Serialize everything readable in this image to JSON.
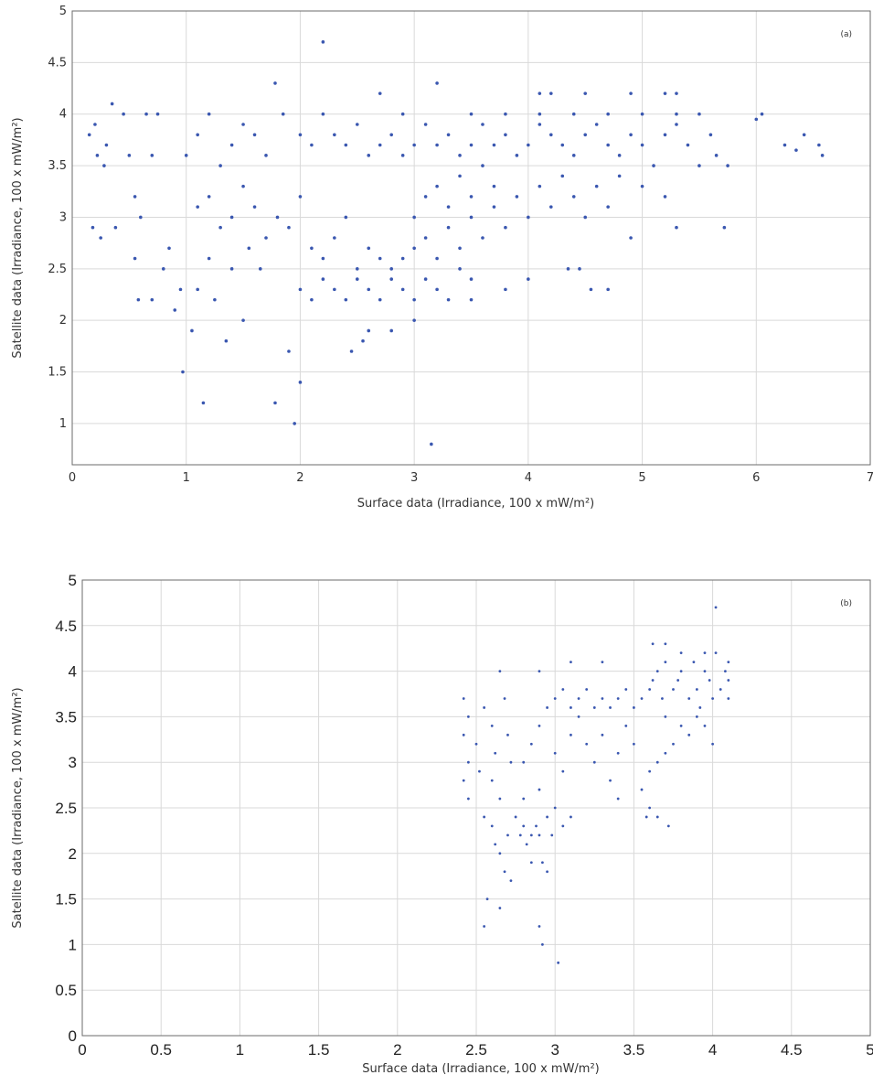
{
  "chart_data": [
    {
      "type": "scatter",
      "panel_label": "(a)",
      "xlabel": "Surface data (Irradiance, 100 x mW/m²)",
      "ylabel": "Satellite data (Irradiance, 100 x mW/m²)",
      "xlim": [
        0,
        7
      ],
      "ylim": [
        0.6,
        5
      ],
      "xticks": [
        0,
        1,
        2,
        3,
        4,
        5,
        6,
        7
      ],
      "yticks": [
        1,
        1.5,
        2,
        2.5,
        3,
        3.5,
        4,
        4.5,
        5
      ],
      "grid": true,
      "marker_color": "#3a57b0",
      "points": [
        [
          0.15,
          3.8
        ],
        [
          0.2,
          3.9
        ],
        [
          0.22,
          3.6
        ],
        [
          0.28,
          3.5
        ],
        [
          0.3,
          3.7
        ],
        [
          0.35,
          4.1
        ],
        [
          0.45,
          4.0
        ],
        [
          0.5,
          3.6
        ],
        [
          0.55,
          3.2
        ],
        [
          0.6,
          3.0
        ],
        [
          0.65,
          4.0
        ],
        [
          0.7,
          3.6
        ],
        [
          0.75,
          4.0
        ],
        [
          0.18,
          2.9
        ],
        [
          0.25,
          2.8
        ],
        [
          0.38,
          2.9
        ],
        [
          0.55,
          2.6
        ],
        [
          0.58,
          2.2
        ],
        [
          0.7,
          2.2
        ],
        [
          0.8,
          2.5
        ],
        [
          0.85,
          2.7
        ],
        [
          0.9,
          2.1
        ],
        [
          0.95,
          2.3
        ],
        [
          0.97,
          1.5
        ],
        [
          1.05,
          1.9
        ],
        [
          1.1,
          2.3
        ],
        [
          1.15,
          1.2
        ],
        [
          1.2,
          2.6
        ],
        [
          1.25,
          2.2
        ],
        [
          1.35,
          1.8
        ],
        [
          1.4,
          2.5
        ],
        [
          1.5,
          2.0
        ],
        [
          1.55,
          2.7
        ],
        [
          1.65,
          2.5
        ],
        [
          1.78,
          1.2
        ],
        [
          1.9,
          1.7
        ],
        [
          1.95,
          1.0
        ],
        [
          2.0,
          1.4
        ],
        [
          2.2,
          4.7
        ],
        [
          1.78,
          4.3
        ],
        [
          3.15,
          0.8
        ],
        [
          3.2,
          4.3
        ],
        [
          2.7,
          4.2
        ],
        [
          4.1,
          4.2
        ],
        [
          4.2,
          4.2
        ],
        [
          4.5,
          4.2
        ],
        [
          4.9,
          4.2
        ],
        [
          5.2,
          4.2
        ],
        [
          5.3,
          4.2
        ],
        [
          6.05,
          4.0
        ],
        [
          6.0,
          3.95
        ],
        [
          6.25,
          3.7
        ],
        [
          6.35,
          3.65
        ],
        [
          6.42,
          3.8
        ],
        [
          6.55,
          3.7
        ],
        [
          6.58,
          3.6
        ],
        [
          5.75,
          3.5
        ],
        [
          5.72,
          2.9
        ],
        [
          5.3,
          2.9
        ],
        [
          4.9,
          2.8
        ],
        [
          4.7,
          2.3
        ],
        [
          4.55,
          2.3
        ],
        [
          4.45,
          2.5
        ],
        [
          4.35,
          2.5
        ],
        [
          2.45,
          1.7
        ],
        [
          2.55,
          1.8
        ],
        [
          2.6,
          1.9
        ],
        [
          2.8,
          1.9
        ],
        [
          3.0,
          2.0
        ],
        [
          3.5,
          2.2
        ],
        [
          3.8,
          2.3
        ],
        [
          4.0,
          2.4
        ],
        [
          1.0,
          3.6
        ],
        [
          1.1,
          3.8
        ],
        [
          1.2,
          4.0
        ],
        [
          1.3,
          3.5
        ],
        [
          1.4,
          3.7
        ],
        [
          1.5,
          3.9
        ],
        [
          1.6,
          3.8
        ],
        [
          1.7,
          3.6
        ],
        [
          1.85,
          4.0
        ],
        [
          2.0,
          3.8
        ],
        [
          2.1,
          3.7
        ],
        [
          2.2,
          4.0
        ],
        [
          2.3,
          3.8
        ],
        [
          2.4,
          3.7
        ],
        [
          2.5,
          3.9
        ],
        [
          2.6,
          3.6
        ],
        [
          1.1,
          3.1
        ],
        [
          1.2,
          3.2
        ],
        [
          1.3,
          2.9
        ],
        [
          1.4,
          3.0
        ],
        [
          1.5,
          3.3
        ],
        [
          1.6,
          3.1
        ],
        [
          1.7,
          2.8
        ],
        [
          1.8,
          3.0
        ],
        [
          1.9,
          2.9
        ],
        [
          2.0,
          3.2
        ],
        [
          2.1,
          2.7
        ],
        [
          2.2,
          2.6
        ],
        [
          2.3,
          2.8
        ],
        [
          2.4,
          3.0
        ],
        [
          2.5,
          2.5
        ],
        [
          2.6,
          2.7
        ],
        [
          2.0,
          2.3
        ],
        [
          2.1,
          2.2
        ],
        [
          2.2,
          2.4
        ],
        [
          2.3,
          2.3
        ],
        [
          2.4,
          2.2
        ],
        [
          2.5,
          2.4
        ],
        [
          2.6,
          2.3
        ],
        [
          2.7,
          2.2
        ],
        [
          2.8,
          2.4
        ],
        [
          2.9,
          2.3
        ],
        [
          3.0,
          2.2
        ],
        [
          3.1,
          2.4
        ],
        [
          3.2,
          2.3
        ],
        [
          3.3,
          2.2
        ],
        [
          3.4,
          2.5
        ],
        [
          3.5,
          2.4
        ],
        [
          2.7,
          2.6
        ],
        [
          2.8,
          2.5
        ],
        [
          2.9,
          2.6
        ],
        [
          3.0,
          2.7
        ],
        [
          3.1,
          2.8
        ],
        [
          3.2,
          2.6
        ],
        [
          3.3,
          2.9
        ],
        [
          3.4,
          2.7
        ],
        [
          3.5,
          3.0
        ],
        [
          3.6,
          2.8
        ],
        [
          3.7,
          3.1
        ],
        [
          3.8,
          2.9
        ],
        [
          3.9,
          3.2
        ],
        [
          4.0,
          3.0
        ],
        [
          4.1,
          3.3
        ],
        [
          4.2,
          3.1
        ],
        [
          3.0,
          3.0
        ],
        [
          3.1,
          3.2
        ],
        [
          3.2,
          3.3
        ],
        [
          3.3,
          3.1
        ],
        [
          3.4,
          3.4
        ],
        [
          3.5,
          3.2
        ],
        [
          3.6,
          3.5
        ],
        [
          3.7,
          3.3
        ],
        [
          2.7,
          3.7
        ],
        [
          2.8,
          3.8
        ],
        [
          2.9,
          3.6
        ],
        [
          3.0,
          3.7
        ],
        [
          3.1,
          3.9
        ],
        [
          3.2,
          3.7
        ],
        [
          3.3,
          3.8
        ],
        [
          3.4,
          3.6
        ],
        [
          3.5,
          3.7
        ],
        [
          3.6,
          3.9
        ],
        [
          3.7,
          3.7
        ],
        [
          3.8,
          3.8
        ],
        [
          3.9,
          3.6
        ],
        [
          4.0,
          3.7
        ],
        [
          4.1,
          3.9
        ],
        [
          4.2,
          3.8
        ],
        [
          4.3,
          3.7
        ],
        [
          4.4,
          3.6
        ],
        [
          4.5,
          3.8
        ],
        [
          4.6,
          3.9
        ],
        [
          4.7,
          3.7
        ],
        [
          4.8,
          3.6
        ],
        [
          4.9,
          3.8
        ],
        [
          5.0,
          3.7
        ],
        [
          5.1,
          3.5
        ],
        [
          5.2,
          3.8
        ],
        [
          5.3,
          3.9
        ],
        [
          5.4,
          3.7
        ],
        [
          5.5,
          4.0
        ],
        [
          5.6,
          3.8
        ],
        [
          5.65,
          3.6
        ],
        [
          5.5,
          3.5
        ],
        [
          3.5,
          4.0
        ],
        [
          3.8,
          4.0
        ],
        [
          4.1,
          4.0
        ],
        [
          4.4,
          4.0
        ],
        [
          4.7,
          4.0
        ],
        [
          5.0,
          4.0
        ],
        [
          5.3,
          4.0
        ],
        [
          2.9,
          4.0
        ],
        [
          4.3,
          3.4
        ],
        [
          4.4,
          3.2
        ],
        [
          4.5,
          3.0
        ],
        [
          4.6,
          3.3
        ],
        [
          4.7,
          3.1
        ],
        [
          4.8,
          3.4
        ],
        [
          5.0,
          3.3
        ],
        [
          5.2,
          3.2
        ]
      ]
    },
    {
      "type": "scatter",
      "panel_label": "(b)",
      "xlabel": "Surface data (Irradiance, 100 x mW/m²)",
      "ylabel": "Satellite data (Irradiance, 100 x mW/m²)",
      "xlim": [
        0,
        5
      ],
      "ylim": [
        0,
        5
      ],
      "xticks": [
        0,
        0.5,
        1,
        1.5,
        2,
        2.5,
        3,
        3.5,
        4,
        4.5,
        5
      ],
      "yticks": [
        0,
        0.5,
        1,
        1.5,
        2,
        2.5,
        3,
        3.5,
        4,
        4.5,
        5
      ],
      "grid": true,
      "marker_color": "#3a57b0",
      "points": [
        [
          2.55,
          1.2
        ],
        [
          2.57,
          1.5
        ],
        [
          2.65,
          1.4
        ],
        [
          2.9,
          1.2
        ],
        [
          2.92,
          1.0
        ],
        [
          3.02,
          0.8
        ],
        [
          4.02,
          4.7
        ],
        [
          3.72,
          2.3
        ],
        [
          4.0,
          3.2
        ],
        [
          3.62,
          4.3
        ],
        [
          3.7,
          4.3
        ],
        [
          2.65,
          4.0
        ],
        [
          2.9,
          4.0
        ],
        [
          3.1,
          4.1
        ],
        [
          3.3,
          4.1
        ],
        [
          2.42,
          3.7
        ],
        [
          2.45,
          3.5
        ],
        [
          2.42,
          3.3
        ],
        [
          2.45,
          3.0
        ],
        [
          2.42,
          2.8
        ],
        [
          2.45,
          2.6
        ],
        [
          2.5,
          3.2
        ],
        [
          2.52,
          2.9
        ],
        [
          2.55,
          3.6
        ],
        [
          2.6,
          3.4
        ],
        [
          2.62,
          3.1
        ],
        [
          2.6,
          2.8
        ],
        [
          2.65,
          2.6
        ],
        [
          2.68,
          3.7
        ],
        [
          2.7,
          3.3
        ],
        [
          2.72,
          3.0
        ],
        [
          2.55,
          2.4
        ],
        [
          2.6,
          2.3
        ],
        [
          2.62,
          2.1
        ],
        [
          2.65,
          2.0
        ],
        [
          2.68,
          1.8
        ],
        [
          2.7,
          2.2
        ],
        [
          2.72,
          1.7
        ],
        [
          2.75,
          2.4
        ],
        [
          2.78,
          2.2
        ],
        [
          2.8,
          2.3
        ],
        [
          2.82,
          2.1
        ],
        [
          2.85,
          2.2
        ],
        [
          2.88,
          2.3
        ],
        [
          2.9,
          2.2
        ],
        [
          2.92,
          1.9
        ],
        [
          2.95,
          2.4
        ],
        [
          2.98,
          2.2
        ],
        [
          2.95,
          1.8
        ],
        [
          2.85,
          1.9
        ],
        [
          3.0,
          2.5
        ],
        [
          3.05,
          2.3
        ],
        [
          3.1,
          2.4
        ],
        [
          2.8,
          2.6
        ],
        [
          2.9,
          2.7
        ],
        [
          2.8,
          3.0
        ],
        [
          2.85,
          3.2
        ],
        [
          2.9,
          3.4
        ],
        [
          2.95,
          3.6
        ],
        [
          3.0,
          3.1
        ],
        [
          3.05,
          2.9
        ],
        [
          3.1,
          3.3
        ],
        [
          3.15,
          3.5
        ],
        [
          3.0,
          3.7
        ],
        [
          3.05,
          3.8
        ],
        [
          3.1,
          3.6
        ],
        [
          3.15,
          3.7
        ],
        [
          3.2,
          3.8
        ],
        [
          3.25,
          3.6
        ],
        [
          3.3,
          3.7
        ],
        [
          3.35,
          3.6
        ],
        [
          3.2,
          3.2
        ],
        [
          3.25,
          3.0
        ],
        [
          3.3,
          3.3
        ],
        [
          3.35,
          2.8
        ],
        [
          3.4,
          3.1
        ],
        [
          3.45,
          3.4
        ],
        [
          3.5,
          3.2
        ],
        [
          3.4,
          2.6
        ],
        [
          3.4,
          3.7
        ],
        [
          3.45,
          3.8
        ],
        [
          3.5,
          3.6
        ],
        [
          3.55,
          3.7
        ],
        [
          3.6,
          3.8
        ],
        [
          3.62,
          3.9
        ],
        [
          3.65,
          4.0
        ],
        [
          3.68,
          3.7
        ],
        [
          3.6,
          2.5
        ],
        [
          3.55,
          2.7
        ],
        [
          3.6,
          2.9
        ],
        [
          3.65,
          3.0
        ],
        [
          3.7,
          3.1
        ],
        [
          3.65,
          2.4
        ],
        [
          3.58,
          2.4
        ],
        [
          3.7,
          3.5
        ],
        [
          3.75,
          3.8
        ],
        [
          3.78,
          3.9
        ],
        [
          3.8,
          4.0
        ],
        [
          3.85,
          3.7
        ],
        [
          3.88,
          4.1
        ],
        [
          3.9,
          3.8
        ],
        [
          3.92,
          3.6
        ],
        [
          3.95,
          4.0
        ],
        [
          3.98,
          3.9
        ],
        [
          4.0,
          3.7
        ],
        [
          4.02,
          4.2
        ],
        [
          4.05,
          3.8
        ],
        [
          4.08,
          4.0
        ],
        [
          4.1,
          3.9
        ],
        [
          4.1,
          4.1
        ],
        [
          4.1,
          3.7
        ],
        [
          3.8,
          3.4
        ],
        [
          3.85,
          3.3
        ],
        [
          3.9,
          3.5
        ],
        [
          3.95,
          3.4
        ],
        [
          3.75,
          3.2
        ],
        [
          3.7,
          4.1
        ],
        [
          3.8,
          4.2
        ],
        [
          3.95,
          4.2
        ]
      ]
    }
  ]
}
